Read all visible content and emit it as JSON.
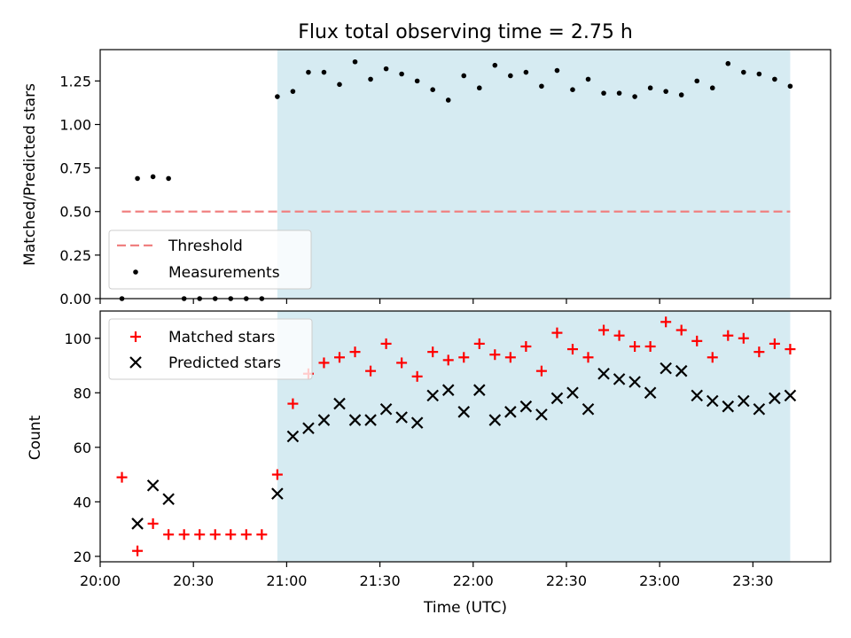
{
  "chart_data": [
    {
      "type": "scatter",
      "title": "Flux total observing time = 2.75 h",
      "xlabel": "",
      "ylabel": "Matched/Predicted stars",
      "xlim": [
        "20:00",
        "23:55"
      ],
      "ylim": [
        0,
        1.43
      ],
      "yticks": [
        0.0,
        0.25,
        0.5,
        0.75,
        1.0,
        1.25
      ],
      "ytick_labels": [
        "0.00",
        "0.25",
        "0.50",
        "0.75",
        "1.00",
        "1.25"
      ],
      "xticks": [
        "20:00",
        "20:30",
        "21:00",
        "21:30",
        "22:00",
        "22:30",
        "23:00",
        "23:30"
      ],
      "shaded_region": {
        "start": "20:57",
        "end": "23:42",
        "color": "#add8e6"
      },
      "threshold": {
        "name": "Threshold",
        "value": 0.5,
        "start": "20:07",
        "end": "23:42",
        "color": "#f08080"
      },
      "legend": {
        "placement": "lower-left",
        "entries": [
          "Threshold",
          "Measurements"
        ]
      },
      "series": [
        {
          "name": "Measurements",
          "color": "#000000",
          "marker": "dot",
          "x": [
            "20:07",
            "20:12",
            "20:17",
            "20:22",
            "20:27",
            "20:32",
            "20:37",
            "20:42",
            "20:47",
            "20:52",
            "20:57",
            "21:02",
            "21:07",
            "21:12",
            "21:17",
            "21:22",
            "21:27",
            "21:32",
            "21:37",
            "21:42",
            "21:47",
            "21:52",
            "21:57",
            "22:02",
            "22:07",
            "22:12",
            "22:17",
            "22:22",
            "22:27",
            "22:32",
            "22:37",
            "22:42",
            "22:47",
            "22:52",
            "22:57",
            "23:02",
            "23:07",
            "23:12",
            "23:17",
            "23:22",
            "23:27",
            "23:32",
            "23:37",
            "23:42"
          ],
          "y": [
            0.0,
            0.69,
            0.7,
            0.69,
            0.0,
            0.0,
            0.0,
            0.0,
            0.0,
            0.0,
            1.16,
            1.19,
            1.3,
            1.3,
            1.23,
            1.36,
            1.26,
            1.32,
            1.29,
            1.25,
            1.2,
            1.14,
            1.28,
            1.21,
            1.34,
            1.28,
            1.3,
            1.22,
            1.31,
            1.2,
            1.26,
            1.18,
            1.18,
            1.16,
            1.21,
            1.19,
            1.17,
            1.25,
            1.21,
            1.35,
            1.3,
            1.29,
            1.26,
            1.22
          ]
        }
      ]
    },
    {
      "type": "scatter",
      "title": "",
      "xlabel": "Time (UTC)",
      "ylabel": "Count",
      "xlim": [
        "20:00",
        "23:55"
      ],
      "ylim": [
        18,
        110
      ],
      "yticks": [
        20,
        40,
        60,
        80,
        100
      ],
      "ytick_labels": [
        "20",
        "40",
        "60",
        "80",
        "100"
      ],
      "xticks": [
        "20:00",
        "20:30",
        "21:00",
        "21:30",
        "22:00",
        "22:30",
        "23:00",
        "23:30"
      ],
      "shaded_region": {
        "start": "20:57",
        "end": "23:42",
        "color": "#add8e6"
      },
      "legend": {
        "placement": "top-left",
        "entries": [
          "Matched stars",
          "Predicted stars"
        ]
      },
      "series": [
        {
          "name": "Matched stars",
          "color": "#ff0000",
          "marker": "plus",
          "x": [
            "20:07",
            "20:12",
            "20:17",
            "20:22",
            "20:27",
            "20:32",
            "20:37",
            "20:42",
            "20:47",
            "20:52",
            "20:57",
            "21:02",
            "21:07",
            "21:12",
            "21:17",
            "21:22",
            "21:27",
            "21:32",
            "21:37",
            "21:42",
            "21:47",
            "21:52",
            "21:57",
            "22:02",
            "22:07",
            "22:12",
            "22:17",
            "22:22",
            "22:27",
            "22:32",
            "22:37",
            "22:42",
            "22:47",
            "22:52",
            "22:57",
            "23:02",
            "23:07",
            "23:12",
            "23:17",
            "23:22",
            "23:27",
            "23:32",
            "23:37",
            "23:42"
          ],
          "y": [
            49,
            22,
            32,
            28,
            28,
            28,
            28,
            28,
            28,
            28,
            50,
            76,
            87,
            91,
            93,
            95,
            88,
            98,
            91,
            86,
            95,
            92,
            93,
            98,
            94,
            93,
            97,
            88,
            102,
            96,
            93,
            103,
            101,
            97,
            97,
            106,
            103,
            99,
            93,
            101,
            100,
            95,
            98,
            96
          ]
        },
        {
          "name": "Predicted stars",
          "color": "#000000",
          "marker": "x",
          "x": [
            "20:12",
            "20:17",
            "20:22",
            "20:57",
            "21:02",
            "21:07",
            "21:12",
            "21:17",
            "21:22",
            "21:27",
            "21:32",
            "21:37",
            "21:42",
            "21:47",
            "21:52",
            "21:57",
            "22:02",
            "22:07",
            "22:12",
            "22:17",
            "22:22",
            "22:27",
            "22:32",
            "22:37",
            "22:42",
            "22:47",
            "22:52",
            "22:57",
            "23:02",
            "23:07",
            "23:12",
            "23:17",
            "23:22",
            "23:27",
            "23:32",
            "23:37",
            "23:42"
          ],
          "y": [
            32,
            46,
            41,
            43,
            64,
            67,
            70,
            76,
            70,
            70,
            74,
            71,
            69,
            79,
            81,
            73,
            81,
            70,
            73,
            75,
            72,
            78,
            80,
            74,
            87,
            85,
            84,
            80,
            89,
            88,
            79,
            77,
            75,
            77,
            74,
            78,
            79
          ]
        }
      ]
    }
  ]
}
